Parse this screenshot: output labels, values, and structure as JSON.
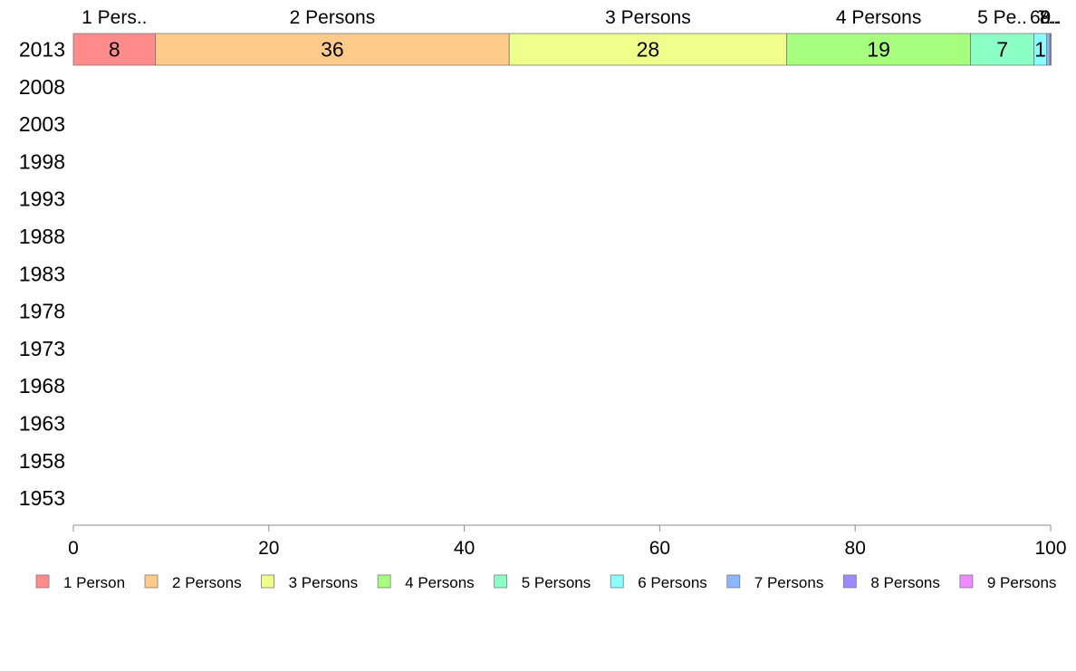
{
  "chart_data": {
    "type": "bar",
    "orientation": "horizontal",
    "stacked": true,
    "categories": [
      "2013",
      "2008",
      "2003",
      "1998",
      "1993",
      "1988",
      "1983",
      "1978",
      "1973",
      "1968",
      "1963",
      "1958",
      "1953"
    ],
    "xlim": [
      0,
      100
    ],
    "xticks": [
      "0",
      "20",
      "40",
      "60",
      "80",
      "100"
    ],
    "grid": false,
    "legend_position": "bottom",
    "series": [
      {
        "name": "1 Person",
        "top_label": "1 Pers..",
        "color": "#ff8b8b",
        "values": [
          8.4,
          null,
          null,
          null,
          null,
          null,
          null,
          null,
          null,
          null,
          null,
          null,
          null
        ],
        "value_labels": [
          "8",
          "",
          "",
          "",
          "",
          "",
          "",
          "",
          "",
          "",
          "",
          "",
          ""
        ]
      },
      {
        "name": "2 Persons",
        "top_label": "2 Persons",
        "color": "#ffcb8b",
        "values": [
          36.2,
          null,
          null,
          null,
          null,
          null,
          null,
          null,
          null,
          null,
          null,
          null,
          null
        ],
        "value_labels": [
          "36",
          "",
          "",
          "",
          "",
          "",
          "",
          "",
          "",
          "",
          "",
          "",
          ""
        ]
      },
      {
        "name": "3 Persons",
        "top_label": "3 Persons",
        "color": "#eeff8b",
        "values": [
          28.4,
          null,
          null,
          null,
          null,
          null,
          null,
          null,
          null,
          null,
          null,
          null,
          null
        ],
        "value_labels": [
          "28",
          "",
          "",
          "",
          "",
          "",
          "",
          "",
          "",
          "",
          "",
          "",
          ""
        ]
      },
      {
        "name": "4 Persons",
        "top_label": "4 Persons",
        "color": "#a6ff7f",
        "values": [
          18.8,
          null,
          null,
          null,
          null,
          null,
          null,
          null,
          null,
          null,
          null,
          null,
          null
        ],
        "value_labels": [
          "19",
          "",
          "",
          "",
          "",
          "",
          "",
          "",
          "",
          "",
          "",
          "",
          ""
        ]
      },
      {
        "name": "5 Persons",
        "top_label": "5 Pe..",
        "color": "#8bffc6",
        "values": [
          6.5,
          null,
          null,
          null,
          null,
          null,
          null,
          null,
          null,
          null,
          null,
          null,
          null
        ],
        "value_labels": [
          "7",
          "",
          "",
          "",
          "",
          "",
          "",
          "",
          "",
          "",
          "",
          "",
          ""
        ]
      },
      {
        "name": "6 Persons",
        "top_label": "6..",
        "color": "#8bfdff",
        "values": [
          1.3,
          null,
          null,
          null,
          null,
          null,
          null,
          null,
          null,
          null,
          null,
          null,
          null
        ],
        "value_labels": [
          "1",
          "",
          "",
          "",
          "",
          "",
          "",
          "",
          "",
          "",
          "",
          "",
          ""
        ]
      },
      {
        "name": "7 Persons",
        "top_label": "7..",
        "color": "#8bb6ff",
        "values": [
          0.3,
          null,
          null,
          null,
          null,
          null,
          null,
          null,
          null,
          null,
          null,
          null,
          null
        ],
        "value_labels": [
          "",
          "",
          "",
          "",
          "",
          "",
          "",
          "",
          "",
          "",
          "",
          "",
          ""
        ]
      },
      {
        "name": "8 Persons",
        "top_label": "8..",
        "color": "#9b8bff",
        "values": [
          0.1,
          null,
          null,
          null,
          null,
          null,
          null,
          null,
          null,
          null,
          null,
          null,
          null
        ],
        "value_labels": [
          "",
          "",
          "",
          "",
          "",
          "",
          "",
          "",
          "",
          "",
          "",
          "",
          ""
        ]
      },
      {
        "name": "9 Persons",
        "top_label": "9..",
        "color": "#ee8bff",
        "values": [
          0.05,
          null,
          null,
          null,
          null,
          null,
          null,
          null,
          null,
          null,
          null,
          null,
          null
        ],
        "value_labels": [
          "",
          "",
          "",
          "",
          "",
          "",
          "",
          "",
          "",
          "",
          "",
          "",
          ""
        ]
      }
    ]
  }
}
